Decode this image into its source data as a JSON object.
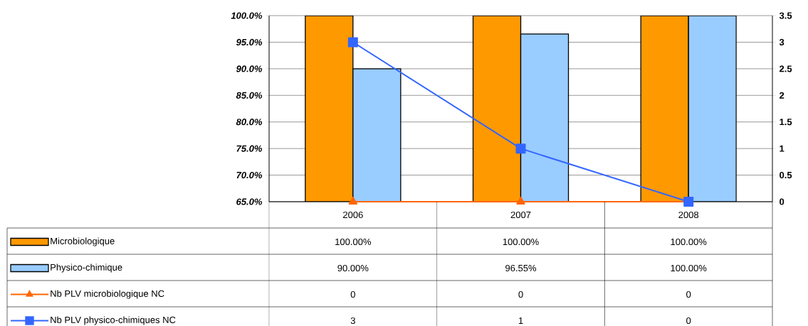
{
  "chart_data": {
    "type": "bar",
    "categories": [
      "2006",
      "2007",
      "2008"
    ],
    "series": [
      {
        "name": "Microbiologique",
        "color": "#ff9900",
        "values": [
          100,
          100,
          100
        ],
        "value_labels": [
          "100.00%",
          "100.00%",
          "100.00%"
        ]
      },
      {
        "name": "Physico-chimique",
        "color": "#99ccff",
        "values": [
          90,
          96.55,
          100
        ],
        "value_labels": [
          "90.00%",
          "96.55%",
          "100.00%"
        ]
      },
      {
        "name": "Nb PLV microbiologique NC",
        "type": "line",
        "axis": "y2",
        "marker": "triangle",
        "color": "#ff6600",
        "values": [
          0,
          0,
          0
        ],
        "value_labels": [
          "0",
          "0",
          "0"
        ]
      },
      {
        "name": "Nb PLV physico-chimiques NC",
        "type": "line",
        "axis": "y2",
        "marker": "square",
        "color": "#3366ff",
        "values": [
          3,
          1,
          0
        ],
        "value_labels": [
          "3",
          "1",
          "0"
        ]
      }
    ],
    "ylim": [
      65,
      100
    ],
    "yticks": [
      {
        "value": 65,
        "label": "65.0%"
      },
      {
        "value": 70,
        "label": "70.0%"
      },
      {
        "value": 75,
        "label": "75.0%"
      },
      {
        "value": 80,
        "label": "80.0%"
      },
      {
        "value": 85,
        "label": "85.0%"
      },
      {
        "value": 90,
        "label": "90.0%"
      },
      {
        "value": 95,
        "label": "95.0%"
      },
      {
        "value": 100,
        "label": "100.0%"
      }
    ],
    "y2lim": [
      0,
      3.5
    ],
    "y2ticks": [
      0,
      0.5,
      1,
      1.5,
      2,
      2.5,
      3,
      3.5
    ],
    "grid": "y",
    "legend": "bottom"
  }
}
